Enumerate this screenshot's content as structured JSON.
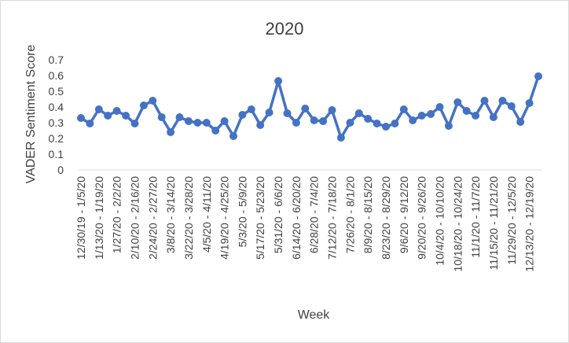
{
  "chart_data": {
    "type": "line",
    "title": "2020",
    "xlabel": "Week",
    "ylabel": "VADER Sentiment Score",
    "ylim": [
      0,
      0.7
    ],
    "yticks": [
      "0",
      "0.1",
      "0.2",
      "0.3",
      "0.4",
      "0.5",
      "0.6",
      "0.7"
    ],
    "grid": false,
    "legend": "none",
    "line_color": "#4472c4",
    "x_tick_labels": [
      "12/30/19 - 1/5/20",
      "1/13/20 - 1/19/20",
      "1/27/20 - 2/2/20",
      "2/10/20 - 2/16/20",
      "2/24/20 - 2/27/20",
      "3/8/20 - 3/14/20",
      "3/22/20 - 3/28/20",
      "4/5/20 - 4/11/20",
      "4/19/20 - 4/25/20",
      "5/3/20 - 5/9/20",
      "5/17/20 - 5/23/20",
      "5/31/20 - 6/6/20",
      "6/14/20 - 6/20/20",
      "6/28/20 - 7/4/20",
      "7/12/20 - 7/18/20",
      "7/26/20 - 8/1/20",
      "8/9/20 - 8/15/20",
      "8/23/20 - 8/29/20",
      "9/6/20 - 9/12/20",
      "9/20/20 - 9/26/20",
      "10/4/20 - 10/10/20",
      "10/18/20 - 10/24/20",
      "11/1/20 - 11/7/20",
      "11/15/20 - 11/21/20",
      "11/29/20 - 12/5/20",
      "12/13/20 - 12/19/20"
    ],
    "values": [
      0.33,
      0.295,
      0.385,
      0.345,
      0.375,
      0.345,
      0.295,
      0.41,
      0.44,
      0.335,
      0.24,
      0.335,
      0.31,
      0.3,
      0.3,
      0.25,
      0.31,
      0.215,
      0.35,
      0.385,
      0.285,
      0.365,
      0.565,
      0.36,
      0.3,
      0.39,
      0.315,
      0.31,
      0.38,
      0.205,
      0.3,
      0.36,
      0.325,
      0.295,
      0.275,
      0.295,
      0.385,
      0.315,
      0.345,
      0.355,
      0.4,
      0.28,
      0.43,
      0.375,
      0.345,
      0.44,
      0.335,
      0.44,
      0.405,
      0.305,
      0.425,
      0.595
    ]
  }
}
